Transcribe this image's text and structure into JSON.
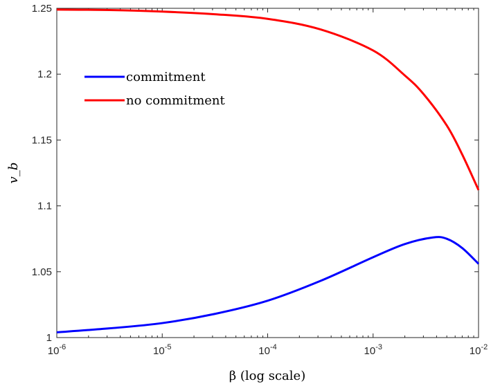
{
  "chart_data": {
    "type": "line",
    "title": "",
    "xlabel": "β (log scale)",
    "ylabel": "v_b",
    "x_scale": "log",
    "xlim": [
      1e-06,
      0.01
    ],
    "ylim": [
      1,
      1.25
    ],
    "x_ticks": [
      {
        "value": 1e-06,
        "base": "10",
        "exp": "-6"
      },
      {
        "value": 1e-05,
        "base": "10",
        "exp": "-5"
      },
      {
        "value": 0.0001,
        "base": "10",
        "exp": "-4"
      },
      {
        "value": 0.001,
        "base": "10",
        "exp": "-3"
      },
      {
        "value": 0.01,
        "base": "10",
        "exp": "-2"
      }
    ],
    "y_ticks": [
      {
        "value": 1,
        "label": "1"
      },
      {
        "value": 1.05,
        "label": "1.05"
      },
      {
        "value": 1.1,
        "label": "1.1"
      },
      {
        "value": 1.15,
        "label": "1.15"
      },
      {
        "value": 1.2,
        "label": "1.2"
      },
      {
        "value": 1.25,
        "label": "1.25"
      }
    ],
    "grid": false,
    "legend_position": "upper-left",
    "series": [
      {
        "name": "commitment",
        "color": "#0000ff",
        "x": [
          1e-06,
          3.16e-06,
          1e-05,
          3.16e-05,
          0.0001,
          0.000316,
          0.001,
          0.002,
          0.0037,
          0.005,
          0.007,
          0.01
        ],
        "y": [
          1.004,
          1.007,
          1.011,
          1.018,
          1.028,
          1.043,
          1.061,
          1.071,
          1.076,
          1.075,
          1.068,
          1.056
        ]
      },
      {
        "name": "no commitment",
        "color": "#ff0000",
        "x": [
          1e-06,
          3.16e-06,
          1e-05,
          3.16e-05,
          0.0001,
          0.000316,
          0.001,
          0.002,
          0.003,
          0.005,
          0.007,
          0.01
        ],
        "y": [
          1.249,
          1.2487,
          1.2475,
          1.2455,
          1.242,
          1.234,
          1.218,
          1.199,
          1.185,
          1.161,
          1.139,
          1.112
        ]
      }
    ]
  }
}
